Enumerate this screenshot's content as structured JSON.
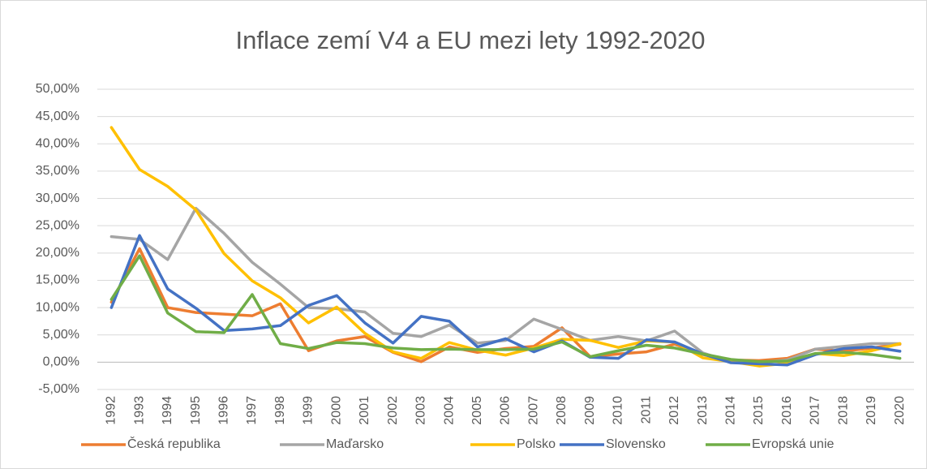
{
  "chart_data": {
    "type": "line",
    "title": "Inflace zemí V4 a EU mezi lety 1992-2020",
    "categories": [
      "1992",
      "1993",
      "1994",
      "1995",
      "1996",
      "1997",
      "1998",
      "1999",
      "2000",
      "2001",
      "2002",
      "2003",
      "2004",
      "2005",
      "2006",
      "2007",
      "2008",
      "2009",
      "2010",
      "2011",
      "2012",
      "2013",
      "2014",
      "2015",
      "2016",
      "2017",
      "2018",
      "2019",
      "2020"
    ],
    "series": [
      {
        "name": "Česká republika",
        "color": "#ED7D31",
        "values": [
          11,
          20.8,
          10,
          9.1,
          8.8,
          8.5,
          10.7,
          2.1,
          3.9,
          4.7,
          1.8,
          0.1,
          2.8,
          1.8,
          2.5,
          2.9,
          6.3,
          1.0,
          1.5,
          1.9,
          3.3,
          1.4,
          0.4,
          0.3,
          0.7,
          2.4,
          2.0,
          2.6,
          3.3
        ]
      },
      {
        "name": "Maďarsko",
        "color": "#A5A5A5",
        "values": [
          23,
          22.5,
          18.8,
          28.2,
          23.6,
          18.3,
          14.3,
          10,
          9.8,
          9.2,
          5.3,
          4.7,
          6.8,
          3.5,
          4.0,
          7.9,
          6.0,
          4.0,
          4.7,
          3.9,
          5.7,
          1.7,
          0,
          -0.1,
          0.4,
          2.4,
          2.9,
          3.4,
          3.4
        ]
      },
      {
        "name": "Polsko",
        "color": "#FFC000",
        "values": [
          43,
          35.3,
          32.2,
          27.9,
          19.9,
          14.9,
          11.8,
          7.2,
          10.1,
          5.3,
          1.9,
          0.7,
          3.6,
          2.2,
          1.3,
          2.6,
          4.2,
          4.0,
          2.7,
          3.9,
          3.7,
          0.8,
          0.1,
          -0.7,
          -0.2,
          1.6,
          1.2,
          2.1,
          3.4
        ]
      },
      {
        "name": "Slovensko",
        "color": "#4472C4",
        "values": [
          10,
          23.2,
          13.4,
          9.9,
          5.8,
          6.1,
          6.7,
          10.4,
          12.2,
          7.2,
          3.5,
          8.4,
          7.5,
          2.8,
          4.3,
          1.9,
          3.9,
          0.9,
          0.7,
          4.1,
          3.7,
          1.5,
          -0.1,
          -0.3,
          -0.5,
          1.4,
          2.5,
          2.8,
          2.0
        ]
      },
      {
        "name": "Evropská unie",
        "color": "#70AD47",
        "values": [
          11.5,
          19.5,
          9.0,
          5.6,
          5.4,
          12.4,
          3.4,
          2.5,
          3.6,
          3.4,
          2.6,
          2.3,
          2.4,
          2.3,
          2.3,
          2.4,
          3.7,
          1.0,
          2.1,
          3.1,
          2.6,
          1.5,
          0.5,
          0.1,
          0.2,
          1.6,
          1.8,
          1.4,
          0.7
        ]
      }
    ],
    "ylim": [
      -5,
      50
    ],
    "yticks": [
      {
        "value": -5,
        "label": "-5,00%"
      },
      {
        "value": 0,
        "label": "0,00%"
      },
      {
        "value": 5,
        "label": "5,00%"
      },
      {
        "value": 10,
        "label": "10,00%"
      },
      {
        "value": 15,
        "label": "15,00%"
      },
      {
        "value": 20,
        "label": "20,00%"
      },
      {
        "value": 25,
        "label": "25,00%"
      },
      {
        "value": 30,
        "label": "30,00%"
      },
      {
        "value": 35,
        "label": "35,00%"
      },
      {
        "value": 40,
        "label": "40,00%"
      },
      {
        "value": 45,
        "label": "45,00%"
      },
      {
        "value": 50,
        "label": "50,00%"
      }
    ],
    "grid": true,
    "legend": "bottom"
  }
}
